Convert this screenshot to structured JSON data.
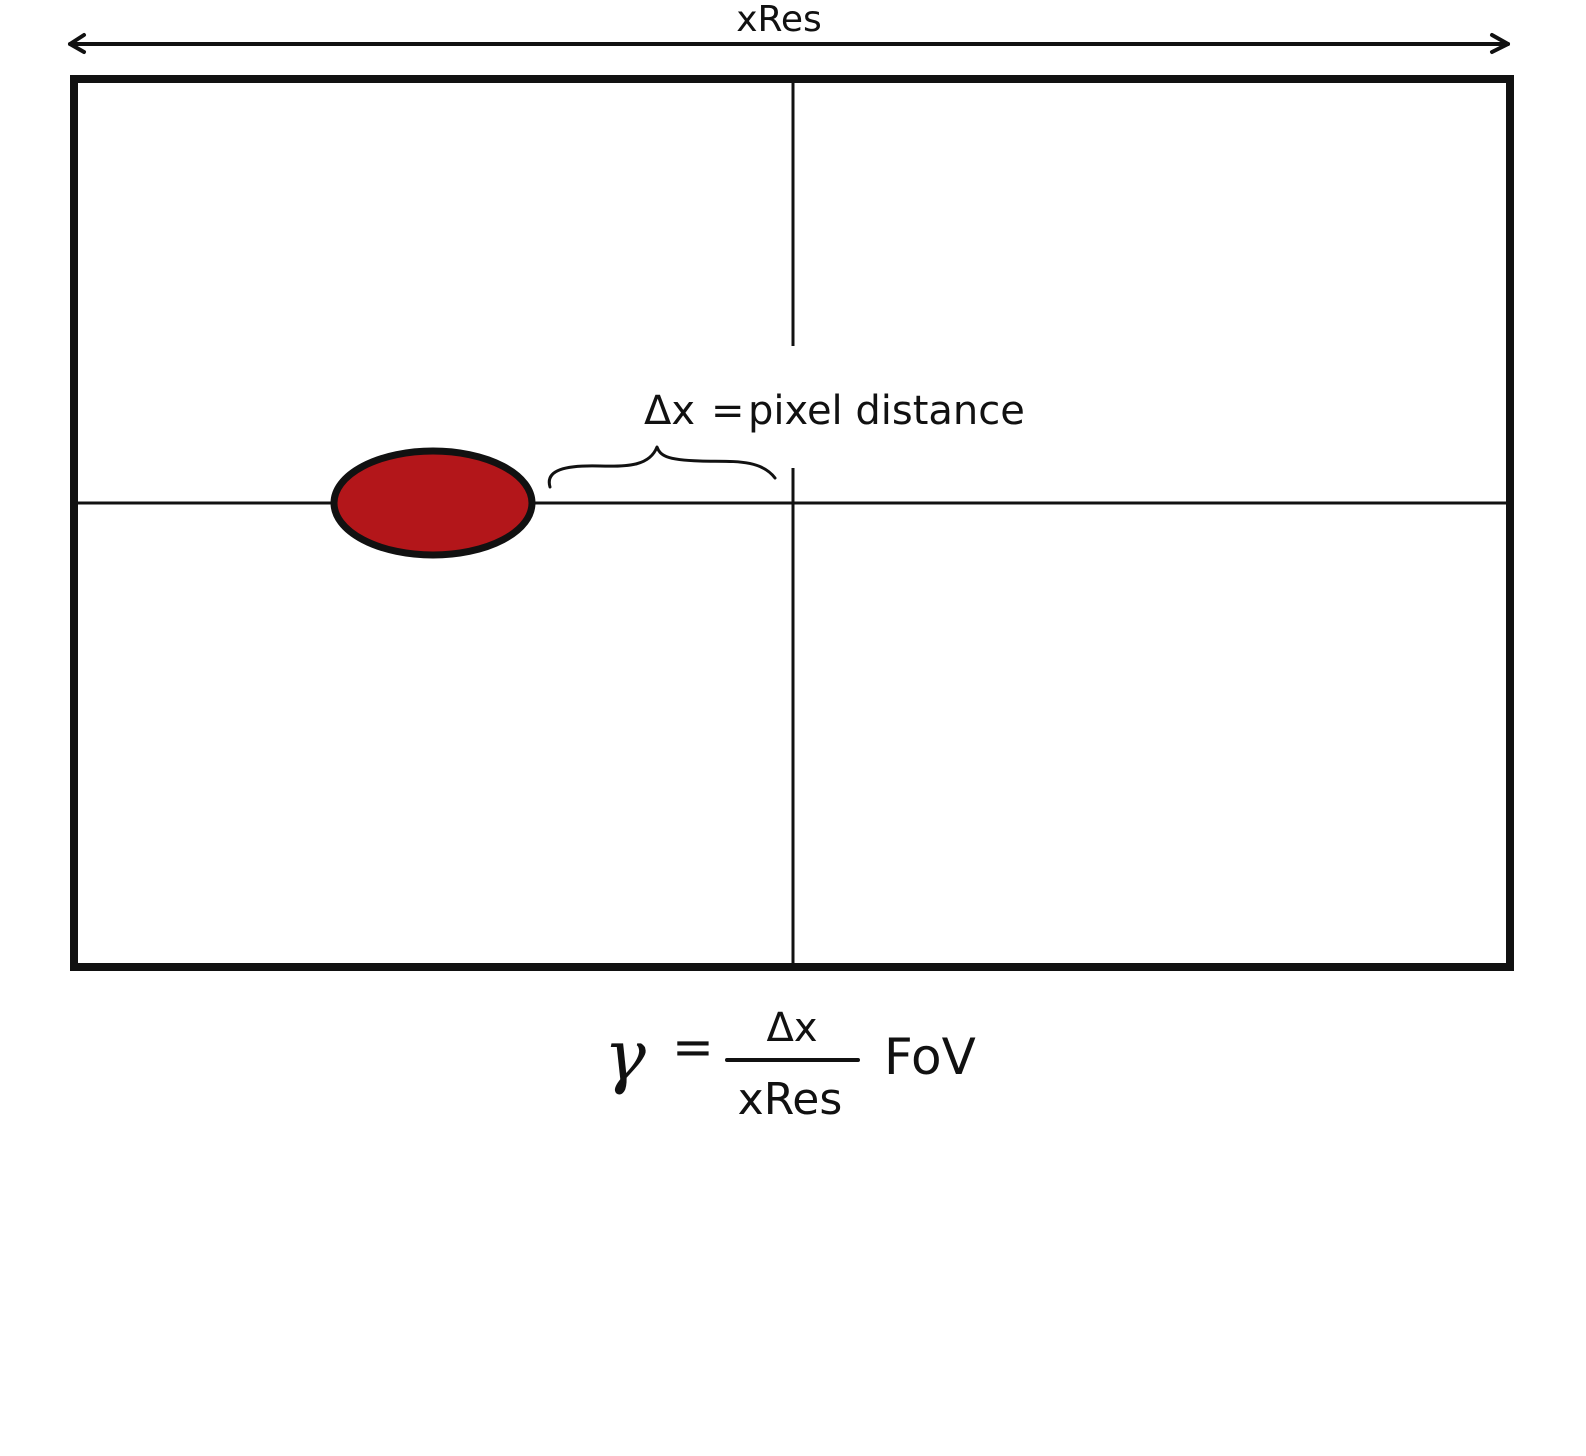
{
  "diagram": {
    "width_label": "xRes",
    "annotation": {
      "delta_symbol": "Δx",
      "equals": "=",
      "text": "pixel distance"
    },
    "formula": {
      "lhs": "γ",
      "equals": "=",
      "numerator": "Δx",
      "denominator": "xRes",
      "multiplier": "FoV"
    },
    "colors": {
      "target_fill": "#b3161a",
      "line": "#111111",
      "background": "#ffffff"
    }
  }
}
